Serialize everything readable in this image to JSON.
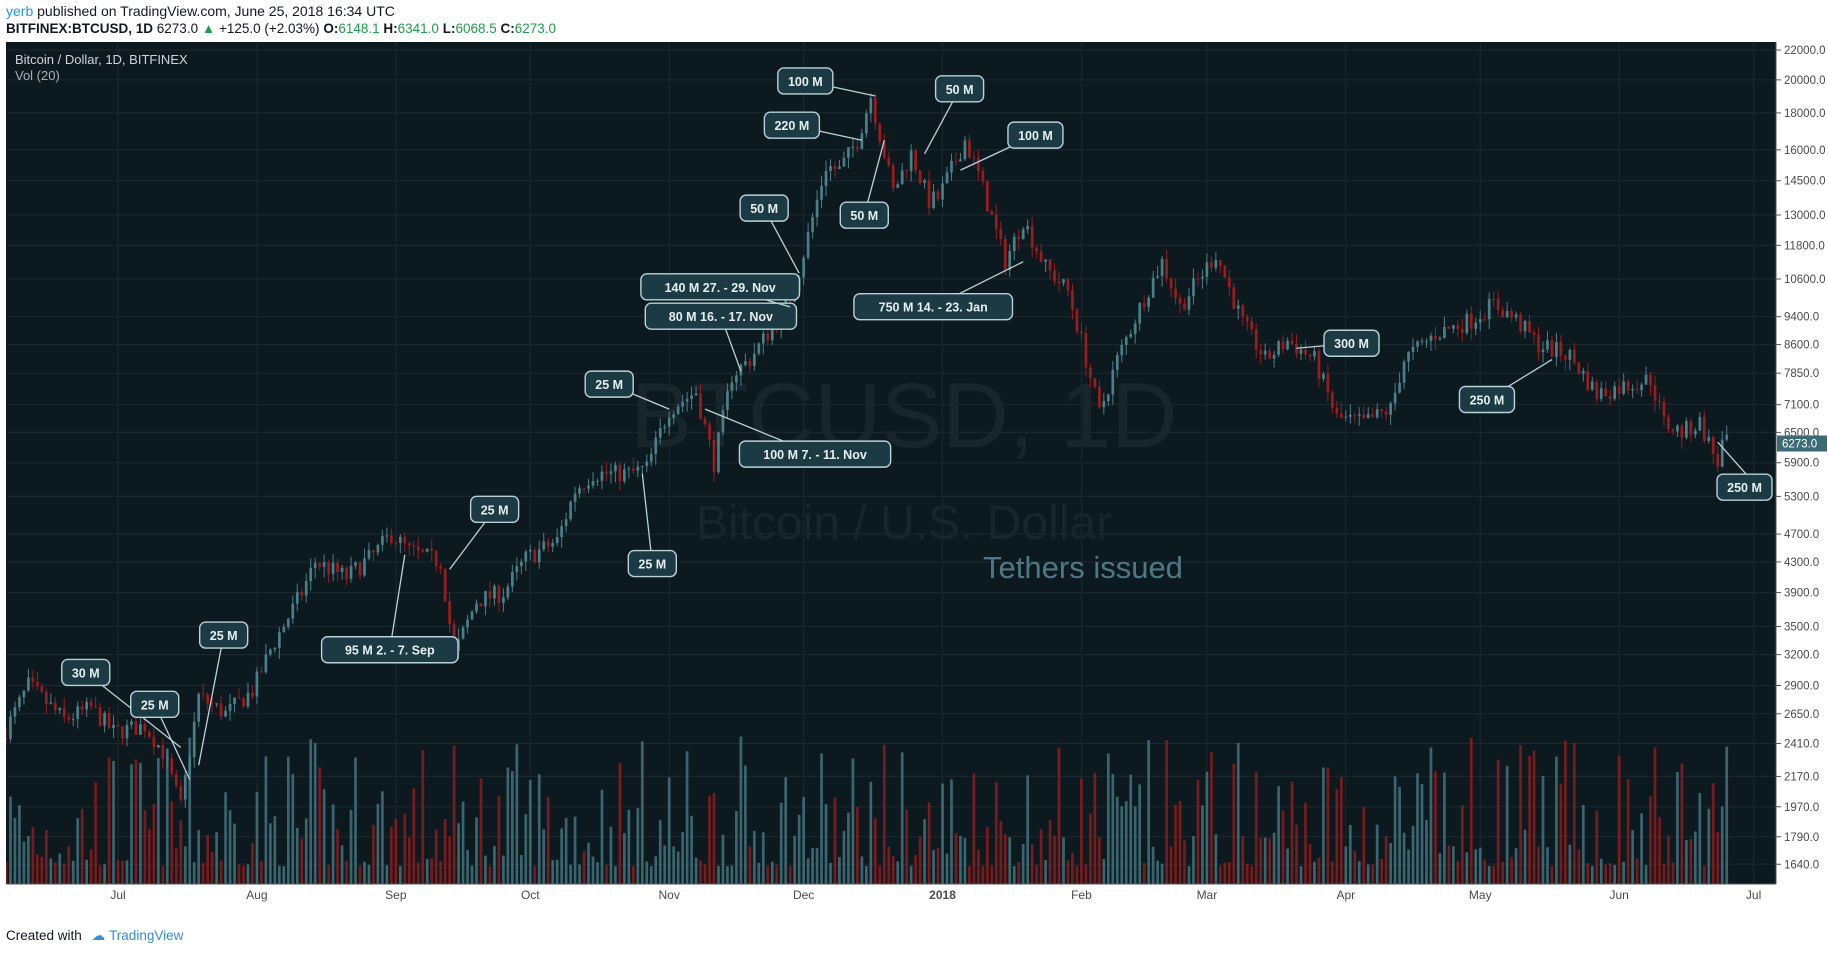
{
  "header": {
    "user": "yerb",
    "published": "published on TradingView.com, June 25, 2018 16:34 UTC",
    "symbol": "BITFINEX:BTCUSD, 1D",
    "price": "6273.0",
    "change_arrow": "▲",
    "change": "+125.0 (+2.03%)",
    "o_label": "O:",
    "o": "6148.1",
    "h_label": "H:",
    "h": "6341.0",
    "l_label": "L:",
    "l": "6068.5",
    "c_label": "C:",
    "c": "6273.0"
  },
  "footer": {
    "created_with": "Created with",
    "brand": "TradingView"
  },
  "colors": {
    "background": "#0c1a20",
    "grid": "#1c2a30",
    "up": "#4a7f8a",
    "down": "#9b1c1c",
    "label_box": "#1c3a44",
    "label_border": "#b9d2d8",
    "annotation": "#4e7887",
    "watermark": "#18262c"
  },
  "chart_data": {
    "type": "candlestick",
    "title": "Bitcoin / Dollar, 1D, BITFINEX",
    "indicator": "Vol (20)",
    "watermark_main": "BTCUSD, 1D",
    "watermark_sub": "Bitcoin / U.S. Dollar",
    "annotation": "Tethers issued",
    "last_price_label": "6273.0",
    "y_scale": "log",
    "ylim": [
      1600,
      22000
    ],
    "y_ticks": [
      "22000.0",
      "20000.0",
      "18000.0",
      "16000.0",
      "14500.0",
      "13000.0",
      "11800.0",
      "10600.0",
      "9400.0",
      "8600.0",
      "7850.0",
      "7100.0",
      "6500.0",
      "5900.0",
      "5300.0",
      "4700.0",
      "4300.0",
      "3900.0",
      "3500.0",
      "3200.0",
      "2900.0",
      "2650.0",
      "2410.0",
      "2170.0",
      "1970.0",
      "1790.0",
      "1640.0"
    ],
    "x_range": [
      "2017-06-06",
      "2018-07-06"
    ],
    "x_ticks": [
      {
        "date": "2017-07-01",
        "label": "Jul"
      },
      {
        "date": "2017-08-01",
        "label": "Aug"
      },
      {
        "date": "2017-09-01",
        "label": "Sep"
      },
      {
        "date": "2017-10-01",
        "label": "Oct"
      },
      {
        "date": "2017-11-01",
        "label": "Nov"
      },
      {
        "date": "2017-12-01",
        "label": "Dec"
      },
      {
        "date": "2018-01-01",
        "label": "2018"
      },
      {
        "date": "2018-02-01",
        "label": "Feb"
      },
      {
        "date": "2018-03-01",
        "label": "Mar"
      },
      {
        "date": "2018-04-01",
        "label": "Apr"
      },
      {
        "date": "2018-05-01",
        "label": "May"
      },
      {
        "date": "2018-06-01",
        "label": "Jun"
      },
      {
        "date": "2018-07-01",
        "label": "Jul"
      }
    ],
    "price_path": [
      [
        "2017-06-06",
        2450
      ],
      [
        "2017-06-12",
        2900
      ],
      [
        "2017-06-20",
        2600
      ],
      [
        "2017-06-26",
        2700
      ],
      [
        "2017-07-01",
        2500
      ],
      [
        "2017-07-08",
        2550
      ],
      [
        "2017-07-12",
        2350
      ],
      [
        "2017-07-16",
        1970
      ],
      [
        "2017-07-20",
        2800
      ],
      [
        "2017-07-26",
        2650
      ],
      [
        "2017-08-01",
        2850
      ],
      [
        "2017-08-05",
        3250
      ],
      [
        "2017-08-12",
        3900
      ],
      [
        "2017-08-15",
        4300
      ],
      [
        "2017-08-22",
        4100
      ],
      [
        "2017-08-28",
        4400
      ],
      [
        "2017-09-01",
        4700
      ],
      [
        "2017-09-05",
        4450
      ],
      [
        "2017-09-12",
        4300
      ],
      [
        "2017-09-15",
        3200
      ],
      [
        "2017-09-20",
        3800
      ],
      [
        "2017-09-26",
        3900
      ],
      [
        "2017-10-01",
        4350
      ],
      [
        "2017-10-08",
        4600
      ],
      [
        "2017-10-12",
        5400
      ],
      [
        "2017-10-16",
        5700
      ],
      [
        "2017-10-24",
        5700
      ],
      [
        "2017-10-28",
        5800
      ],
      [
        "2017-11-02",
        7000
      ],
      [
        "2017-11-08",
        7400
      ],
      [
        "2017-11-12",
        5900
      ],
      [
        "2017-11-16",
        7800
      ],
      [
        "2017-11-20",
        8200
      ],
      [
        "2017-11-26",
        9300
      ],
      [
        "2017-11-29",
        10000
      ],
      [
        "2017-12-01",
        10900
      ],
      [
        "2017-12-07",
        15200
      ],
      [
        "2017-12-10",
        15000
      ],
      [
        "2017-12-14",
        16500
      ],
      [
        "2017-12-17",
        19000
      ],
      [
        "2017-12-22",
        14000
      ],
      [
        "2017-12-26",
        15800
      ],
      [
        "2017-12-30",
        13600
      ],
      [
        "2018-01-01",
        13700
      ],
      [
        "2018-01-07",
        16500
      ],
      [
        "2018-01-10",
        14800
      ],
      [
        "2018-01-16",
        11200
      ],
      [
        "2018-01-20",
        12800
      ],
      [
        "2018-01-25",
        11000
      ],
      [
        "2018-01-30",
        10200
      ],
      [
        "2018-02-02",
        8700
      ],
      [
        "2018-02-06",
        6900
      ],
      [
        "2018-02-10",
        8200
      ],
      [
        "2018-02-16",
        10000
      ],
      [
        "2018-02-20",
        11200
      ],
      [
        "2018-02-24",
        9700
      ],
      [
        "2018-03-04",
        11500
      ],
      [
        "2018-03-10",
        9200
      ],
      [
        "2018-03-15",
        8200
      ],
      [
        "2018-03-20",
        8700
      ],
      [
        "2018-03-26",
        8200
      ],
      [
        "2018-03-31",
        6800
      ],
      [
        "2018-04-06",
        6700
      ],
      [
        "2018-04-12",
        7000
      ],
      [
        "2018-04-15",
        8200
      ],
      [
        "2018-04-22",
        8900
      ],
      [
        "2018-04-30",
        9300
      ],
      [
        "2018-05-05",
        9800
      ],
      [
        "2018-05-10",
        9300
      ],
      [
        "2018-05-15",
        8600
      ],
      [
        "2018-05-22",
        8300
      ],
      [
        "2018-05-28",
        7350
      ],
      [
        "2018-06-05",
        7600
      ],
      [
        "2018-06-09",
        7700
      ],
      [
        "2018-06-12",
        6700
      ],
      [
        "2018-06-16",
        6500
      ],
      [
        "2018-06-20",
        6700
      ],
      [
        "2018-06-24",
        5900
      ],
      [
        "2018-06-25",
        6273
      ]
    ],
    "tether_labels": [
      {
        "text": "30 M",
        "anchor": [
          "2017-07-15",
          2380
        ]
      },
      {
        "text": "25 M",
        "anchor": [
          "2017-07-17",
          2150
        ]
      },
      {
        "text": "25 M",
        "anchor": [
          "2017-07-19",
          2250
        ]
      },
      {
        "text": "95 M 2. - 7. Sep",
        "anchor": [
          "2017-09-03",
          4400
        ]
      },
      {
        "text": "25 M",
        "anchor": [
          "2017-09-13",
          4200
        ]
      },
      {
        "text": "25 M",
        "anchor": [
          "2017-11-01",
          7000
        ]
      },
      {
        "text": "25 M",
        "anchor": [
          "2017-10-26",
          5700
        ]
      },
      {
        "text": "100 M 7. - 11. Nov",
        "anchor": [
          "2017-11-09",
          7000
        ]
      },
      {
        "text": "80 M 16. - 17. Nov",
        "anchor": [
          "2017-11-17",
          7900
        ]
      },
      {
        "text": "140 M 27. - 29. Nov",
        "anchor": [
          "2017-11-28",
          9700
        ]
      },
      {
        "text": "50 M",
        "anchor": [
          "2017-11-30",
          10800
        ]
      },
      {
        "text": "220 M",
        "anchor": [
          "2017-12-14",
          16500
        ]
      },
      {
        "text": "100 M",
        "anchor": [
          "2017-12-17",
          19000
        ]
      },
      {
        "text": "50 M",
        "anchor": [
          "2017-12-19",
          16500
        ]
      },
      {
        "text": "50 M",
        "anchor": [
          "2017-12-28",
          15800
        ]
      },
      {
        "text": "100 M",
        "anchor": [
          "2018-01-05",
          15000
        ]
      },
      {
        "text": "750 M 14. - 23. Jan",
        "anchor": [
          "2018-01-19",
          11200
        ]
      },
      {
        "text": "300 M",
        "anchor": [
          "2018-03-21",
          8500
        ]
      },
      {
        "text": "250 M",
        "anchor": [
          "2018-05-17",
          8200
        ]
      },
      {
        "text": "250 M",
        "anchor": [
          "2018-06-23",
          6300
        ]
      }
    ]
  }
}
